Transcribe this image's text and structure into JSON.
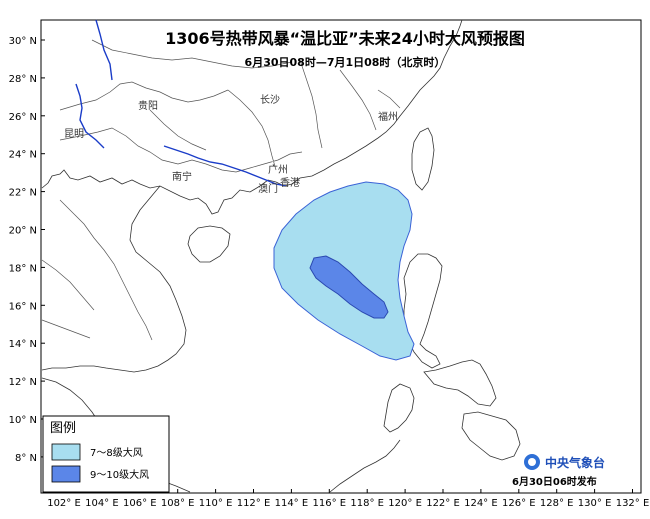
{
  "title": "1306号热带风暴“温比亚”未来24小时大风预报图",
  "subtitle": "6月30日08时—7月1日08时（北京时）",
  "lat_labels": [
    "30° N",
    "28° N",
    "26° N",
    "24° N",
    "22° N",
    "20° N",
    "18° N",
    "16° N",
    "14° N",
    "12° N",
    "10° N",
    "8° N"
  ],
  "lat_values": [
    30,
    28,
    26,
    24,
    22,
    20,
    18,
    16,
    14,
    12,
    10,
    8
  ],
  "lon_labels": [
    "102° E",
    "104° E",
    "106° E",
    "108° E",
    "110° E",
    "112° E",
    "114° E",
    "116° E",
    "118° E",
    "120° E",
    "122° E",
    "124° E",
    "126° E",
    "128° E",
    "130° E",
    "132° E"
  ],
  "lon_values": [
    102,
    104,
    106,
    108,
    110,
    112,
    114,
    116,
    118,
    120,
    122,
    124,
    126,
    128,
    130,
    132
  ],
  "cities": {
    "changsha": "长沙",
    "guiyang": "贵阳",
    "kunming": "昆明",
    "nanning": "南宁",
    "guangzhou": "广州",
    "fuzhou": "福州",
    "aomen": "澳门",
    "hongkong": "香港"
  },
  "legend": {
    "title": "图例",
    "items": [
      {
        "label": "7～8级大风",
        "color": "#a8def0"
      },
      {
        "label": "9～10级大风",
        "color": "#5b86e8"
      }
    ]
  },
  "agency": "中央气象台",
  "release": "6月30日06时发布",
  "colors": {
    "wind_7_8": "#a8def0",
    "wind_9_10": "#5b86e8",
    "outline": "#3a62d6",
    "river": "#1a3cc8"
  }
}
